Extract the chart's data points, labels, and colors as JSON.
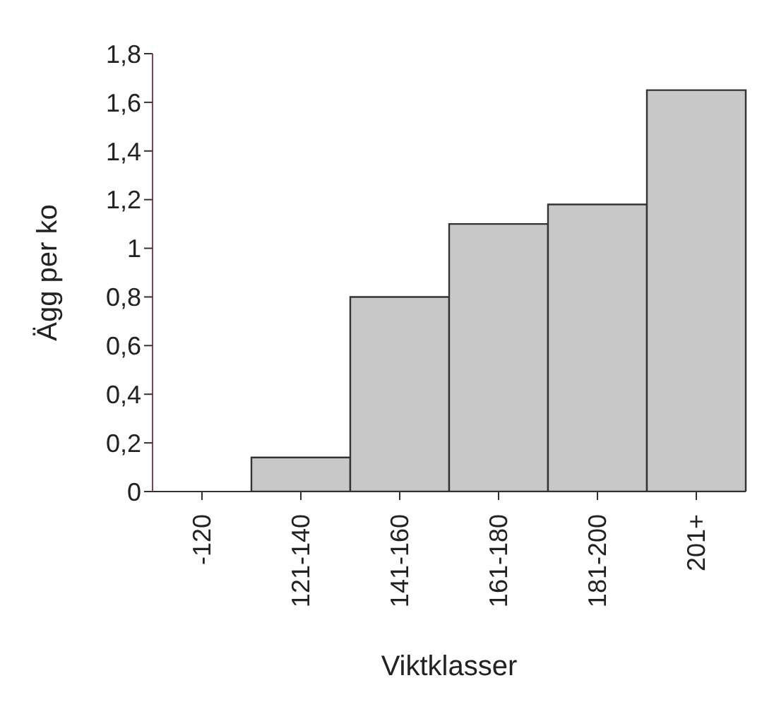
{
  "chart_data": {
    "type": "bar",
    "xlabel": "Viktklasser",
    "ylabel": "Ägg per ko",
    "categories": [
      "-120",
      "121-140",
      "141-160",
      "161-180",
      "181-200",
      "201+"
    ],
    "values": [
      0,
      0.14,
      0.8,
      1.1,
      1.18,
      1.65
    ],
    "color": "#c8c8c8",
    "ylim": [
      0,
      1.8
    ],
    "yticks": [
      0,
      {
        "value": 0.2,
        "label": "0,2"
      },
      {
        "value": 0.4,
        "label": "0,4"
      },
      {
        "value": 0.6,
        "label": "0,6"
      },
      {
        "value": 0.8,
        "label": "0,8"
      },
      1,
      {
        "value": 1.2,
        "label": "1,2"
      },
      {
        "value": 1.4,
        "label": "1,4"
      },
      {
        "value": 1.6,
        "label": "1,6"
      },
      {
        "value": 1.8,
        "label": "1,8"
      }
    ],
    "grid": false,
    "legend": false
  }
}
